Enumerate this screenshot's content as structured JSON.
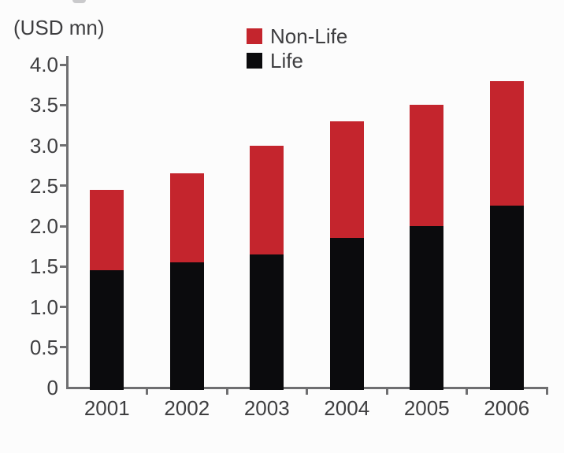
{
  "chart_data": {
    "type": "bar",
    "stacked": true,
    "title": "",
    "unit_label": "(USD mn)",
    "xlabel": "",
    "ylabel": "(USD mn)",
    "categories": [
      "2001",
      "2002",
      "2003",
      "2004",
      "2005",
      "2006"
    ],
    "series": [
      {
        "name": "Life",
        "color": "#0b0b0d",
        "values": [
          1.45,
          1.55,
          1.65,
          1.85,
          2.0,
          2.25
        ]
      },
      {
        "name": "Non-Life",
        "color": "#c4252d",
        "values": [
          1.0,
          1.1,
          1.35,
          1.45,
          1.5,
          1.55
        ]
      }
    ],
    "totals": [
      2.45,
      2.65,
      3.0,
      3.3,
      3.5,
      3.8
    ],
    "ylim": [
      0,
      4.0
    ],
    "ytick_step": 0.5,
    "ytick_labels": [
      "0",
      "0.5",
      "1.0",
      "1.5",
      "2.0",
      "2.5",
      "3.0",
      "3.5",
      "4.0"
    ],
    "legend": [
      {
        "label": "Non-Life",
        "color": "#c4252d"
      },
      {
        "label": "Life",
        "color": "#0b0b0d"
      }
    ],
    "legend_position": "top-center",
    "grid": false,
    "colors": {
      "axis": "#6f6f71",
      "text": "#3e3e40",
      "background": "#fcfcfc"
    }
  }
}
